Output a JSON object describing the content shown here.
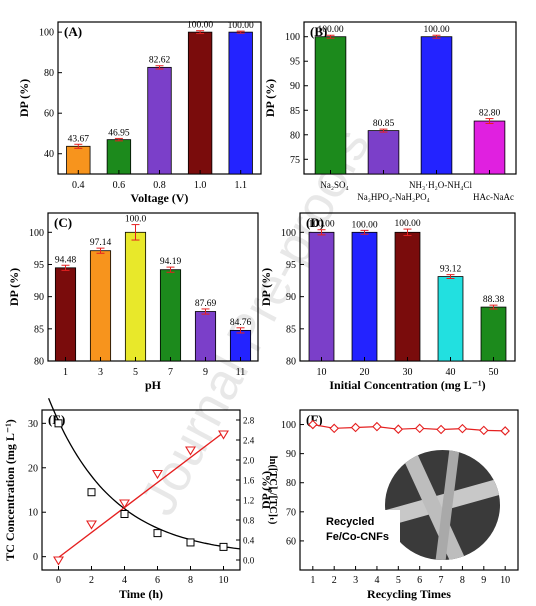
{
  "watermark": "Journal Pre-proofs",
  "panels": [
    {
      "label": "(A)",
      "type": "bar",
      "xlabel": "Voltage (V)",
      "ylabel": "DP (%)",
      "ylim": [
        30,
        105
      ],
      "yticks": [
        "40",
        "60",
        "80",
        "100"
      ],
      "categories": [
        "0.4",
        "0.6",
        "0.8",
        "1.0",
        "1.1"
      ],
      "values": [
        43.67,
        46.95,
        82.62,
        100.0,
        100.0
      ],
      "labels": [
        "43.67",
        "46.95",
        "82.62",
        "100.00",
        "100.00"
      ],
      "colors": [
        "#f7941d",
        "#1c8a1c",
        "#7b3fc9",
        "#7a0c0c",
        "#2323ff"
      ],
      "errors": [
        1.0,
        0.6,
        0.8,
        0.7,
        0.5
      ]
    },
    {
      "label": "(B)",
      "type": "bar",
      "xlabel": "",
      "ylabel": "DP (%)",
      "ylim": [
        72,
        103
      ],
      "yticks": [
        "75",
        "80",
        "85",
        "90",
        "95",
        "100"
      ],
      "categories": [
        "Na₂SO₄",
        "Na₂HPO₄-NaH₂PO₄",
        "NH₃·H₂O-NH₄Cl",
        "HAc-NaAc"
      ],
      "values": [
        100.0,
        80.85,
        100.0,
        82.8
      ],
      "labels": [
        "100.00",
        "80.85",
        "100.00",
        "82.80"
      ],
      "colors": [
        "#1c8a1c",
        "#7b3fc9",
        "#2323ff",
        "#e020e0"
      ],
      "errors": [
        0.3,
        0.3,
        0.3,
        0.5
      ]
    },
    {
      "label": "(C)",
      "type": "bar",
      "xlabel": "pH",
      "ylabel": "DP (%)",
      "ylim": [
        80,
        103
      ],
      "yticks": [
        "80",
        "85",
        "90",
        "95",
        "100"
      ],
      "categories": [
        "1",
        "3",
        "5",
        "7",
        "9",
        "11"
      ],
      "values": [
        94.48,
        97.14,
        100.0,
        94.19,
        87.69,
        84.76
      ],
      "labels": [
        "94.48",
        "97.14",
        "100.0",
        "94.19",
        "87.69",
        "84.76"
      ],
      "colors": [
        "#7a0c0c",
        "#f7941d",
        "#e8e82a",
        "#1c8a1c",
        "#7b3fc9",
        "#2323ff"
      ],
      "errors": [
        0.4,
        0.4,
        1.2,
        0.4,
        0.4,
        0.4
      ]
    },
    {
      "label": "(D)",
      "type": "bar",
      "xlabel": "Initial Concentration (mg L⁻¹)",
      "ylabel": "DP (%)",
      "ylim": [
        80,
        103
      ],
      "yticks": [
        "80",
        "85",
        "90",
        "95",
        "100"
      ],
      "categories": [
        "10",
        "20",
        "30",
        "40",
        "50"
      ],
      "values": [
        100.0,
        100.0,
        100.0,
        93.12,
        88.38
      ],
      "labels": [
        "100.00",
        "100.00",
        "100.00",
        "93.12",
        "88.38"
      ],
      "colors": [
        "#7b3fc9",
        "#2323ff",
        "#7a0c0c",
        "#22e0e0",
        "#1c8a1c"
      ],
      "errors": [
        0.4,
        0.3,
        0.5,
        0.3,
        0.3
      ]
    },
    {
      "label": "(E)",
      "type": "scatter-line",
      "xlabel": "Time (h)",
      "ylabel": "TC Concentration (mg L⁻¹)",
      "ylabel2": "ln([TC]₀/[TC]ₜ)",
      "xlim": [
        -1,
        11
      ],
      "ylim": [
        -3,
        33
      ],
      "ylim2": [
        -0.2,
        3.0
      ],
      "xticks": [
        "0",
        "2",
        "4",
        "6",
        "8",
        "10"
      ],
      "yticks": [
        "0",
        "10",
        "20",
        "30"
      ],
      "yticks2": [
        "0.0",
        "0.4",
        "0.8",
        "1.2",
        "1.6",
        "2.0",
        "2.4",
        "2.8"
      ],
      "x": [
        0,
        2,
        4,
        6,
        8,
        10
      ],
      "concentration": [
        30,
        14.5,
        9.6,
        5.3,
        3.2,
        2.2
      ],
      "ln_ratio": [
        0.0,
        0.72,
        1.14,
        1.73,
        2.2,
        2.52
      ]
    },
    {
      "label": "(F)",
      "type": "line",
      "xlabel": "Recycling Times",
      "ylabel": "DP (%)",
      "xlim": [
        0.4,
        10.6
      ],
      "ylim": [
        50,
        105
      ],
      "xticks": [
        "1",
        "2",
        "3",
        "4",
        "5",
        "6",
        "7",
        "8",
        "9",
        "10"
      ],
      "yticks": [
        "60",
        "70",
        "80",
        "90",
        "100"
      ],
      "x": [
        1,
        2,
        3,
        4,
        5,
        6,
        7,
        8,
        9,
        10
      ],
      "values": [
        100.0,
        98.7,
        99.0,
        99.3,
        98.4,
        98.7,
        98.3,
        98.6,
        98.0,
        97.8
      ],
      "inset_text": [
        "Recycled",
        "Fe/Co-CNFs"
      ]
    }
  ],
  "colors": {
    "line_red": "#e52020",
    "marker_black": "#000000",
    "error_red": "#e52020"
  }
}
